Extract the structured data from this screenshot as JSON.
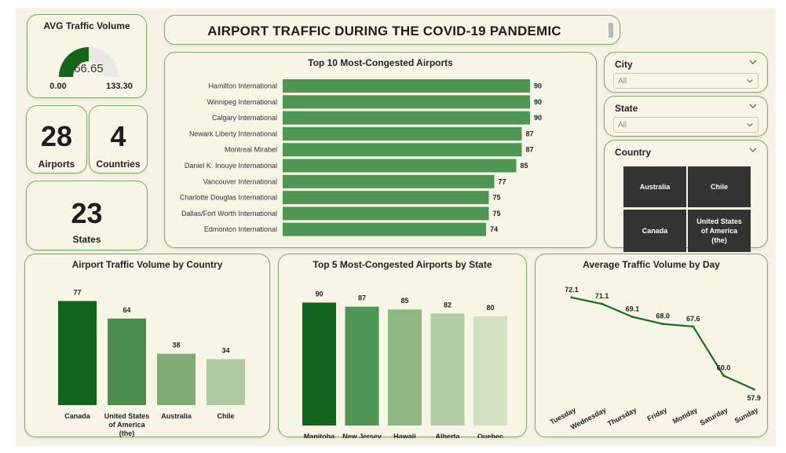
{
  "header": {
    "title": "AIRPORT TRAFFIC DURING THE COVID-19 PANDEMIC"
  },
  "gauge": {
    "title": "AVG Traffic Volume",
    "value": "66.65",
    "min": "0.00",
    "max": "133.30",
    "fraction": 0.5,
    "color": "#15651a"
  },
  "kpis": {
    "airports": {
      "value": "28",
      "label": "Airports"
    },
    "countries": {
      "value": "4",
      "label": "Countries"
    },
    "states": {
      "value": "23",
      "label": "States"
    }
  },
  "slicers": {
    "city": {
      "title": "City",
      "value": "All"
    },
    "state": {
      "title": "State",
      "value": "All"
    },
    "country": {
      "title": "Country",
      "tiles": [
        "Australia",
        "Chile",
        "Canada",
        "United States of America (the)"
      ]
    }
  },
  "chart_data": [
    {
      "type": "bar",
      "orientation": "horizontal",
      "title": "Top 10 Most-Congested Airports",
      "categories": [
        "Hamilton International",
        "Winnipeg International",
        "Calgary International",
        "Newark Liberty International",
        "Montreal Mirabel",
        "Daniel K. Inouye International",
        "Vancouver International",
        "Charlotte Douglas International",
        "Dallas/Fort Worth International",
        "Edmonton International"
      ],
      "values": [
        90,
        90,
        90,
        87,
        87,
        85,
        77,
        75,
        75,
        74
      ],
      "xlim": [
        0,
        100
      ],
      "color": "#4f9553"
    },
    {
      "type": "bar",
      "title": "Airport Traffic Volume by Country",
      "categories": [
        "Canada",
        "United States of America (the)",
        "Australia",
        "Chile"
      ],
      "values": [
        77,
        64,
        38,
        34
      ],
      "ylim": [
        0,
        90
      ],
      "colors": [
        "#12661b",
        "#4b8d4f",
        "#7fac72",
        "#aecba0"
      ]
    },
    {
      "type": "bar",
      "title": "Top 5 Most-Congested Airports by State",
      "categories": [
        "Manitoba",
        "New Jersey",
        "Hawaii",
        "Alberta",
        "Quebec"
      ],
      "values": [
        90,
        87,
        85,
        82,
        80
      ],
      "ylim": [
        0,
        100
      ],
      "colors": [
        "#12661b",
        "#4f9553",
        "#8db883",
        "#b0cda3",
        "#d3e1c3"
      ]
    },
    {
      "type": "line",
      "title": "Average Traffic Volume by Day",
      "x": [
        "Tuesday",
        "Wednesday",
        "Thursday",
        "Friday",
        "Monday",
        "Saturday",
        "Sunday"
      ],
      "values": [
        72.1,
        71.1,
        69.1,
        68.0,
        67.6,
        60.0,
        57.9
      ],
      "labels": [
        "72.1",
        "71.1",
        "69.1",
        "68.0",
        "67.6",
        "60.0",
        "57.9"
      ],
      "ylim": [
        55,
        75
      ],
      "color": "#1d6b1f"
    }
  ]
}
